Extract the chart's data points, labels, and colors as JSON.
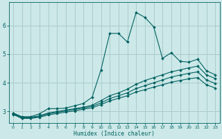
{
  "xlabel": "Humidex (Indice chaleur)",
  "bg_color": "#cce8e8",
  "grid_color": "#aacccc",
  "line_color": "#006060",
  "xlim": [
    -0.5,
    23.5
  ],
  "ylim": [
    2.6,
    6.8
  ],
  "xticks": [
    0,
    1,
    2,
    3,
    4,
    5,
    6,
    7,
    8,
    9,
    10,
    11,
    12,
    13,
    14,
    15,
    16,
    17,
    18,
    19,
    20,
    21,
    22,
    23
  ],
  "yticks": [
    3,
    4,
    5,
    6
  ],
  "series": [
    {
      "x": [
        0,
        1,
        2,
        3,
        4,
        5,
        6,
        7,
        8,
        9,
        10,
        11,
        12,
        13,
        14,
        15,
        16,
        17,
        18,
        19,
        20,
        21,
        22,
        23
      ],
      "y": [
        2.95,
        2.82,
        2.82,
        2.92,
        3.1,
        3.1,
        3.12,
        3.2,
        3.28,
        3.5,
        4.45,
        5.72,
        5.72,
        5.42,
        6.45,
        6.28,
        5.95,
        4.85,
        5.05,
        4.75,
        4.72,
        4.82,
        4.42,
        4.28
      ]
    },
    {
      "x": [
        0,
        1,
        2,
        3,
        4,
        5,
        6,
        7,
        8,
        9,
        10,
        11,
        12,
        13,
        14,
        15,
        16,
        17,
        18,
        19,
        20,
        21,
        22,
        23
      ],
      "y": [
        2.93,
        2.8,
        2.8,
        2.85,
        2.95,
        3.0,
        3.05,
        3.1,
        3.15,
        3.22,
        3.38,
        3.55,
        3.65,
        3.78,
        3.95,
        4.08,
        4.18,
        4.28,
        4.38,
        4.45,
        4.52,
        4.58,
        4.28,
        4.15
      ]
    },
    {
      "x": [
        0,
        1,
        2,
        3,
        4,
        5,
        6,
        7,
        8,
        9,
        10,
        11,
        12,
        13,
        14,
        15,
        16,
        17,
        18,
        19,
        20,
        21,
        22,
        23
      ],
      "y": [
        2.92,
        2.78,
        2.78,
        2.83,
        2.92,
        2.97,
        3.02,
        3.07,
        3.12,
        3.18,
        3.3,
        3.45,
        3.55,
        3.65,
        3.8,
        3.9,
        4.0,
        4.1,
        4.2,
        4.27,
        4.33,
        4.38,
        4.1,
        3.98
      ]
    },
    {
      "x": [
        0,
        1,
        2,
        3,
        4,
        5,
        6,
        7,
        8,
        9,
        10,
        11,
        12,
        13,
        14,
        15,
        16,
        17,
        18,
        19,
        20,
        21,
        22,
        23
      ],
      "y": [
        2.9,
        2.76,
        2.76,
        2.8,
        2.88,
        2.93,
        2.98,
        3.02,
        3.08,
        3.13,
        3.24,
        3.37,
        3.46,
        3.55,
        3.68,
        3.76,
        3.85,
        3.93,
        4.02,
        4.08,
        4.14,
        4.18,
        3.93,
        3.82
      ]
    }
  ]
}
